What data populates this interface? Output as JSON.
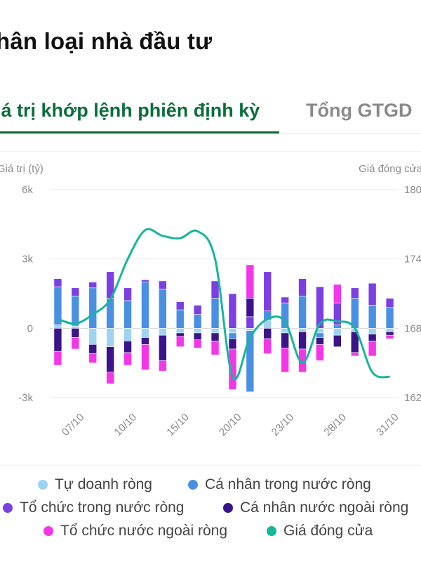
{
  "page": {
    "title": "hân loại nhà đầu tư",
    "tabs": [
      {
        "label": "iá trị khớp lệnh phiên định kỳ",
        "active": true
      },
      {
        "label": "Tổng GTGD",
        "active": false
      }
    ]
  },
  "colors": {
    "tu_doanh": "#9fd3f2",
    "ca_nhan_trong_nuoc": "#4a90e2",
    "to_chuc_trong_nuoc": "#7b3fe4",
    "ca_nhan_nuoc_ngoai": "#3a1488",
    "to_chuc_nuoc_ngoai": "#f536e8",
    "gia_dong_cua": "#16b59c",
    "grid": "#e8e8e8",
    "axis_text": "#8a8a8a"
  },
  "chart_data": {
    "type": "bar",
    "ylabel": "Giá trị (tỷ)",
    "y2label": "Giá đóng cửa",
    "ylim": [
      -3000,
      6000
    ],
    "yticks": [
      6000,
      3000,
      0,
      -3000
    ],
    "ytick_labels": [
      "6k",
      "3k",
      "0",
      "-3k"
    ],
    "y2lim": [
      162,
      180
    ],
    "y2ticks": [
      180,
      174,
      168,
      162
    ],
    "y2tick_labels": [
      "180",
      "174",
      "168",
      "162"
    ],
    "x": [
      "06/10",
      "07/10",
      "08/10",
      "09/10",
      "10/10",
      "13/10",
      "14/10",
      "15/10",
      "16/10",
      "17/10",
      "20/10",
      "21/10",
      "22/10",
      "23/10",
      "24/10",
      "27/10",
      "28/10",
      "29/10",
      "30/10",
      "31/10"
    ],
    "xtick_labels": [
      "07/10",
      "10/10",
      "15/10",
      "20/10",
      "23/10",
      "28/10",
      "31/10"
    ],
    "xtick_index": [
      1,
      4,
      7,
      10,
      13,
      16,
      19
    ],
    "series": [
      {
        "name": "Tự doanh ròng",
        "key": "tu_doanh",
        "values": [
          150,
          100,
          -700,
          -800,
          -550,
          -400,
          -300,
          -200,
          -200,
          -200,
          -200,
          -100,
          350,
          -200,
          -150,
          -200,
          -300,
          -150,
          -250,
          -150
        ]
      },
      {
        "name": "Cá nhân trong nước ròng",
        "key": "ca_nhan_trong_nuoc",
        "values": [
          1650,
          1300,
          1750,
          1300,
          1200,
          2000,
          1700,
          800,
          600,
          1300,
          -250,
          -2650,
          400,
          1100,
          1400,
          -200,
          150,
          1300,
          1000,
          900
        ]
      },
      {
        "name": "Tổ chức trong nước ròng",
        "key": "to_chuc_trong_nuoc",
        "values": [
          350,
          350,
          250,
          1150,
          550,
          100,
          350,
          350,
          400,
          750,
          1500,
          500,
          1700,
          250,
          750,
          1800,
          950,
          450,
          950,
          400
        ]
      },
      {
        "name": "Cá nhân nước ngoài ròng",
        "key": "ca_nhan_nuoc_ngoai",
        "values": [
          -1000,
          -400,
          -400,
          -1100,
          -500,
          -300,
          -1100,
          -150,
          -300,
          -350,
          -450,
          800,
          -450,
          -650,
          -750,
          -300,
          -500,
          -900,
          -300,
          -150
        ]
      },
      {
        "name": "Tổ chức nước ngoài ròng",
        "key": "to_chuc_nuoc_ngoai",
        "values": [
          -600,
          -500,
          -400,
          -500,
          -550,
          -1100,
          -450,
          -450,
          -350,
          -600,
          -1750,
          1450,
          -650,
          -1050,
          -1000,
          -700,
          800,
          -150,
          -650,
          -150
        ]
      }
    ],
    "line": {
      "name": "Giá đóng cửa",
      "key": "gia_dong_cua",
      "values": [
        168.8,
        168.4,
        169.2,
        170.5,
        174.0,
        176.5,
        176.0,
        175.8,
        176.4,
        174.0,
        163.8,
        167.2,
        168.8,
        168.6,
        165.0,
        168.4,
        168.6,
        168.0,
        164.2,
        163.8
      ]
    },
    "legend_position": "bottom"
  },
  "legend": [
    {
      "label": "Tự doanh ròng",
      "key": "tu_doanh"
    },
    {
      "label": "Cá nhân trong nước ròng",
      "key": "ca_nhan_trong_nuoc"
    },
    {
      "label": "Tổ chức trong nước ròng",
      "key": "to_chuc_trong_nuoc"
    },
    {
      "label": "Cá nhân nước ngoài ròng",
      "key": "ca_nhan_nuoc_ngoai"
    },
    {
      "label": "Tổ chức nước ngoài ròng",
      "key": "to_chuc_nuoc_ngoai"
    },
    {
      "label": "Giá đóng cửa",
      "key": "gia_dong_cua"
    }
  ]
}
